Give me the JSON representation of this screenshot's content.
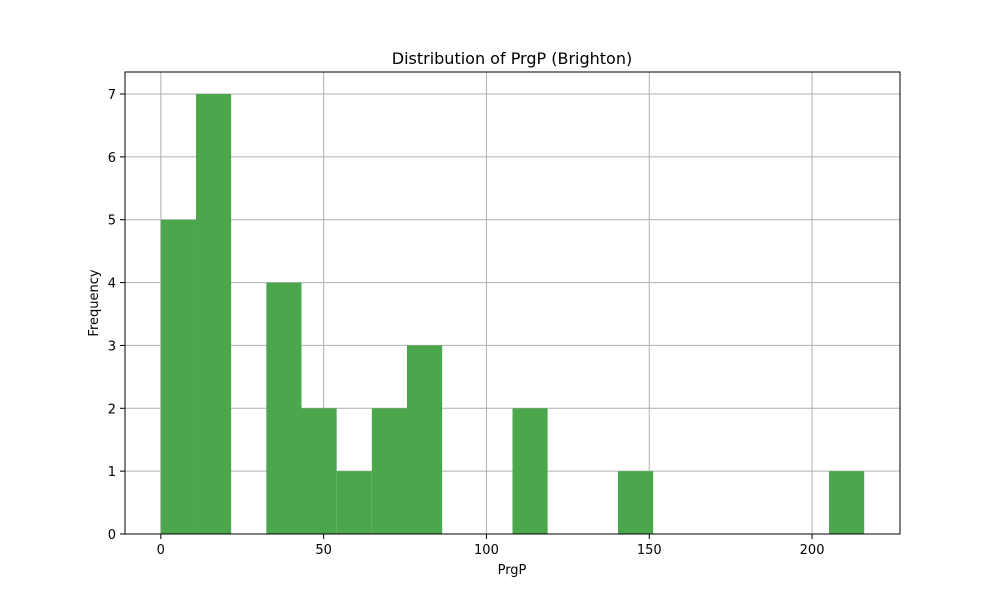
{
  "chart_data": {
    "type": "bar",
    "title": "Distribution of PrgP (Brighton)",
    "xlabel": "PrgP",
    "ylabel": "Frequency",
    "xlim": [
      -11,
      227
    ],
    "ylim": [
      0,
      7.35
    ],
    "x_ticks": [
      0,
      50,
      100,
      150,
      200
    ],
    "y_ticks": [
      0,
      1,
      2,
      3,
      4,
      5,
      6,
      7
    ],
    "grid": true,
    "bar_color": "#4ca64c",
    "bins": [
      {
        "start": 0,
        "end": 10.8,
        "count": 5
      },
      {
        "start": 10.8,
        "end": 21.6,
        "count": 7
      },
      {
        "start": 21.6,
        "end": 32.4,
        "count": 0
      },
      {
        "start": 32.4,
        "end": 43.2,
        "count": 4
      },
      {
        "start": 43.2,
        "end": 54.0,
        "count": 2
      },
      {
        "start": 54.0,
        "end": 64.8,
        "count": 1
      },
      {
        "start": 64.8,
        "end": 75.6,
        "count": 2
      },
      {
        "start": 75.6,
        "end": 86.4,
        "count": 3
      },
      {
        "start": 86.4,
        "end": 97.2,
        "count": 0
      },
      {
        "start": 97.2,
        "end": 108.0,
        "count": 0
      },
      {
        "start": 108.0,
        "end": 118.8,
        "count": 2
      },
      {
        "start": 118.8,
        "end": 129.6,
        "count": 0
      },
      {
        "start": 129.6,
        "end": 140.4,
        "count": 0
      },
      {
        "start": 140.4,
        "end": 151.2,
        "count": 1
      },
      {
        "start": 151.2,
        "end": 162.0,
        "count": 0
      },
      {
        "start": 162.0,
        "end": 172.8,
        "count": 0
      },
      {
        "start": 172.8,
        "end": 183.6,
        "count": 0
      },
      {
        "start": 183.6,
        "end": 194.4,
        "count": 0
      },
      {
        "start": 194.4,
        "end": 205.2,
        "count": 0
      },
      {
        "start": 205.2,
        "end": 216.0,
        "count": 1
      }
    ]
  }
}
